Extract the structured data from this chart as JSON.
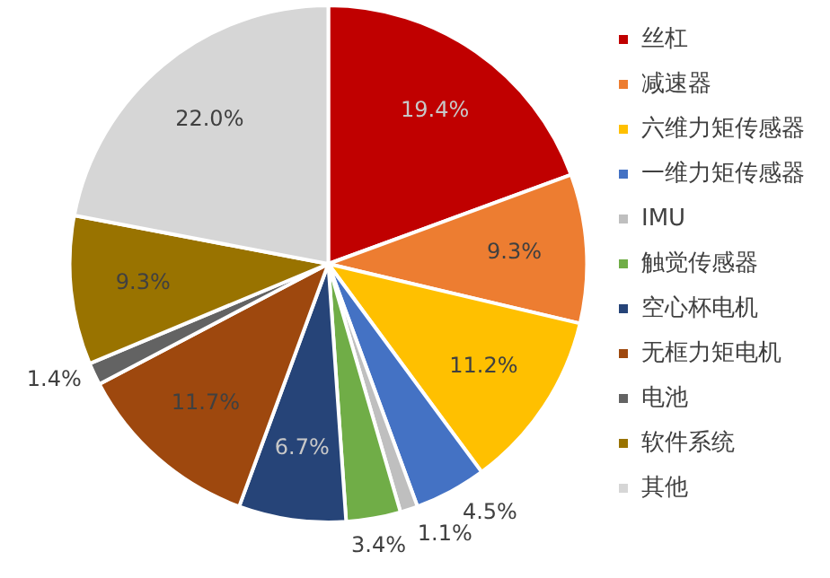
{
  "chart_data": {
    "type": "pie",
    "categories": [
      "丝杠",
      "减速器",
      "六维力矩传感器",
      "一维力矩传感器",
      "IMU",
      "触觉传感器",
      "空心杯电机",
      "无框力矩电机",
      "电池",
      "软件系统",
      "其他"
    ],
    "values": [
      19.4,
      9.3,
      11.2,
      4.5,
      1.1,
      3.4,
      6.7,
      11.7,
      1.4,
      9.3,
      22.0
    ],
    "colors": [
      "#c00000",
      "#ed7d31",
      "#ffc000",
      "#4472c4",
      "#bfbfbf",
      "#70ad47",
      "#264478",
      "#9e480e",
      "#636363",
      "#997300",
      "#d6d6d6"
    ],
    "value_labels": [
      "19.4%",
      "9.3%",
      "11.2%",
      "4.5%",
      "1.1%",
      "3.4%",
      "6.7%",
      "11.7%",
      "1.4%",
      "9.3%",
      "22.0%"
    ],
    "legend": "right"
  }
}
